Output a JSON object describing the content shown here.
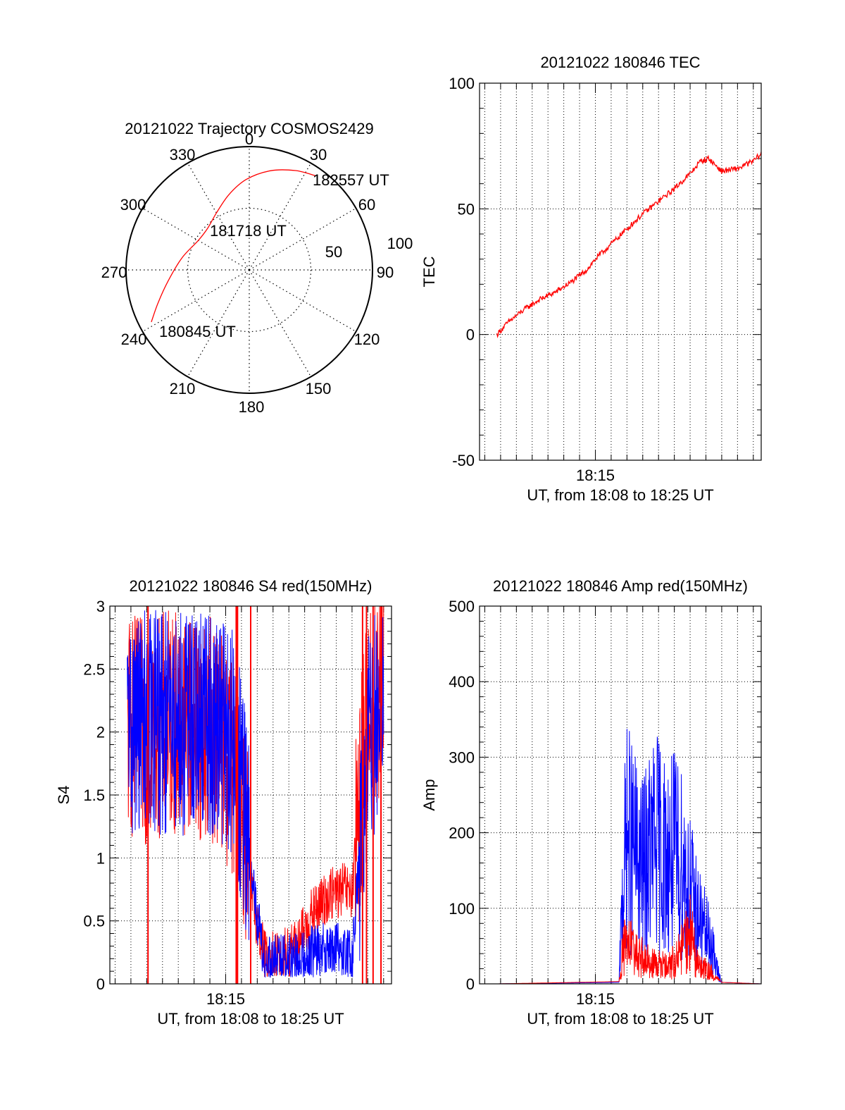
{
  "chart_data": [
    {
      "id": "trajectory",
      "type": "polar",
      "title": "20121022 Trajectory COSMOS2429",
      "azimuth_labels": [
        "0",
        "30",
        "60",
        "90",
        "120",
        "150",
        "180",
        "210",
        "240",
        "270",
        "300",
        "330"
      ],
      "radial_labels": [
        "50",
        "100"
      ],
      "colors": {
        "trajectory": "#ff0000",
        "grid": "#000000"
      },
      "trajectory": {
        "start_label": "180845 UT",
        "mid_label": "181718 UT",
        "end_label": "182557 UT",
        "points": [
          {
            "az": 242,
            "el": 9
          },
          {
            "az": 250,
            "el": 19
          },
          {
            "az": 262,
            "el": 30
          },
          {
            "az": 280,
            "el": 40
          },
          {
            "az": 300,
            "el": 47
          },
          {
            "az": 315,
            "el": 47
          },
          {
            "az": 330,
            "el": 42
          },
          {
            "az": 345,
            "el": 33
          },
          {
            "az": 358,
            "el": 24
          },
          {
            "az": 12,
            "el": 16
          },
          {
            "az": 25,
            "el": 10
          },
          {
            "az": 35,
            "el": 6
          }
        ]
      }
    },
    {
      "id": "tec",
      "type": "line",
      "title": "20121022 180846 TEC",
      "xlabel": "UT, from 18:08 to 18:25 UT",
      "ylabel": "TEC",
      "x_tick_labels": [
        "18:15"
      ],
      "y_ticks": [
        "-50",
        "0",
        "50",
        "100"
      ],
      "ylim": [
        -50,
        100
      ],
      "xlim": [
        "18:07:40",
        "18:25:30"
      ],
      "grid": true,
      "series": [
        {
          "color": "#ff0000",
          "x": [
            "18:08:46",
            "18:09:30",
            "18:10:30",
            "18:11:30",
            "18:12:30",
            "18:13:30",
            "18:14:30",
            "18:15:00",
            "18:16:00",
            "18:17:00",
            "18:18:00",
            "18:19:00",
            "18:20:00",
            "18:21:00",
            "18:21:40",
            "18:22:10",
            "18:23:00",
            "18:24:00",
            "18:25:00",
            "18:25:30"
          ],
          "y": [
            0,
            5,
            10,
            14,
            17,
            21,
            26,
            30,
            36,
            42,
            48,
            53,
            58,
            64,
            69,
            70,
            65,
            66,
            69,
            72
          ]
        }
      ]
    },
    {
      "id": "s4",
      "type": "line",
      "title": "20121022 180846 S4 red(150MHz)",
      "xlabel": "UT, from 18:08 to 18:25 UT",
      "ylabel": "S4",
      "x_tick_labels": [
        "18:15"
      ],
      "y_ticks": [
        "0",
        "0.5",
        "1",
        "1.5",
        "2",
        "2.5",
        "3"
      ],
      "ylim": [
        0,
        3
      ],
      "xlim": [
        "18:07:40",
        "18:25:30"
      ],
      "grid": true,
      "series": [
        {
          "color": "#ff0000",
          "x": [
            "18:08:46",
            "18:10:00",
            "18:11:30",
            "18:13:00",
            "18:14:30",
            "18:15:30",
            "18:16:10",
            "18:16:40",
            "18:17:30",
            "18:18:30",
            "18:19:30",
            "18:20:30",
            "18:21:30",
            "18:22:30",
            "18:23:00",
            "18:24:00",
            "18:25:00"
          ],
          "y": [
            2.05,
            2.0,
            2.1,
            2.05,
            2.0,
            1.7,
            1.3,
            0.7,
            0.2,
            0.22,
            0.3,
            0.55,
            0.7,
            0.75,
            0.7,
            2.2,
            2.3
          ]
        },
        {
          "color": "#0000ff",
          "x": [
            "18:08:46",
            "18:10:00",
            "18:11:30",
            "18:13:00",
            "18:14:30",
            "18:15:30",
            "18:16:10",
            "18:16:40",
            "18:17:30",
            "18:18:30",
            "18:19:30",
            "18:20:30",
            "18:21:30",
            "18:22:30",
            "18:23:00",
            "18:24:00",
            "18:25:00"
          ],
          "y": [
            2.05,
            2.1,
            2.05,
            2.1,
            2.05,
            1.9,
            1.4,
            0.8,
            0.15,
            0.2,
            0.18,
            0.25,
            0.3,
            0.25,
            0.2,
            1.9,
            2.2
          ]
        }
      ]
    },
    {
      "id": "amp",
      "type": "line",
      "title": "20121022 180846 Amp red(150MHz)",
      "xlabel": "UT, from 18:08 to 18:25 UT",
      "ylabel": "Amp",
      "x_tick_labels": [
        "18:15"
      ],
      "y_ticks": [
        "0",
        "100",
        "200",
        "300",
        "400",
        "500"
      ],
      "ylim": [
        0,
        500
      ],
      "xlim": [
        "18:07:40",
        "18:25:30"
      ],
      "grid": true,
      "series": [
        {
          "color": "#0000ff",
          "x": [
            "18:08:46",
            "18:16:30",
            "18:16:45",
            "18:17:00",
            "18:17:30",
            "18:18:00",
            "18:18:30",
            "18:19:00",
            "18:19:30",
            "18:20:00",
            "18:20:30",
            "18:21:00",
            "18:21:30",
            "18:22:00",
            "18:22:20",
            "18:22:40",
            "18:23:00",
            "18:25:30"
          ],
          "y": [
            0,
            2,
            180,
            260,
            230,
            200,
            240,
            250,
            220,
            230,
            210,
            170,
            120,
            90,
            70,
            30,
            2,
            0
          ]
        },
        {
          "color": "#ff0000",
          "x": [
            "18:08:46",
            "18:16:30",
            "18:16:45",
            "18:17:00",
            "18:17:30",
            "18:18:00",
            "18:18:30",
            "18:19:00",
            "18:19:30",
            "18:20:00",
            "18:20:30",
            "18:21:00",
            "18:21:30",
            "18:22:00",
            "18:22:20",
            "18:22:40",
            "18:23:00",
            "18:25:30"
          ],
          "y": [
            0,
            3,
            60,
            70,
            55,
            45,
            40,
            35,
            30,
            40,
            60,
            90,
            30,
            25,
            20,
            10,
            2,
            0
          ]
        }
      ]
    }
  ]
}
